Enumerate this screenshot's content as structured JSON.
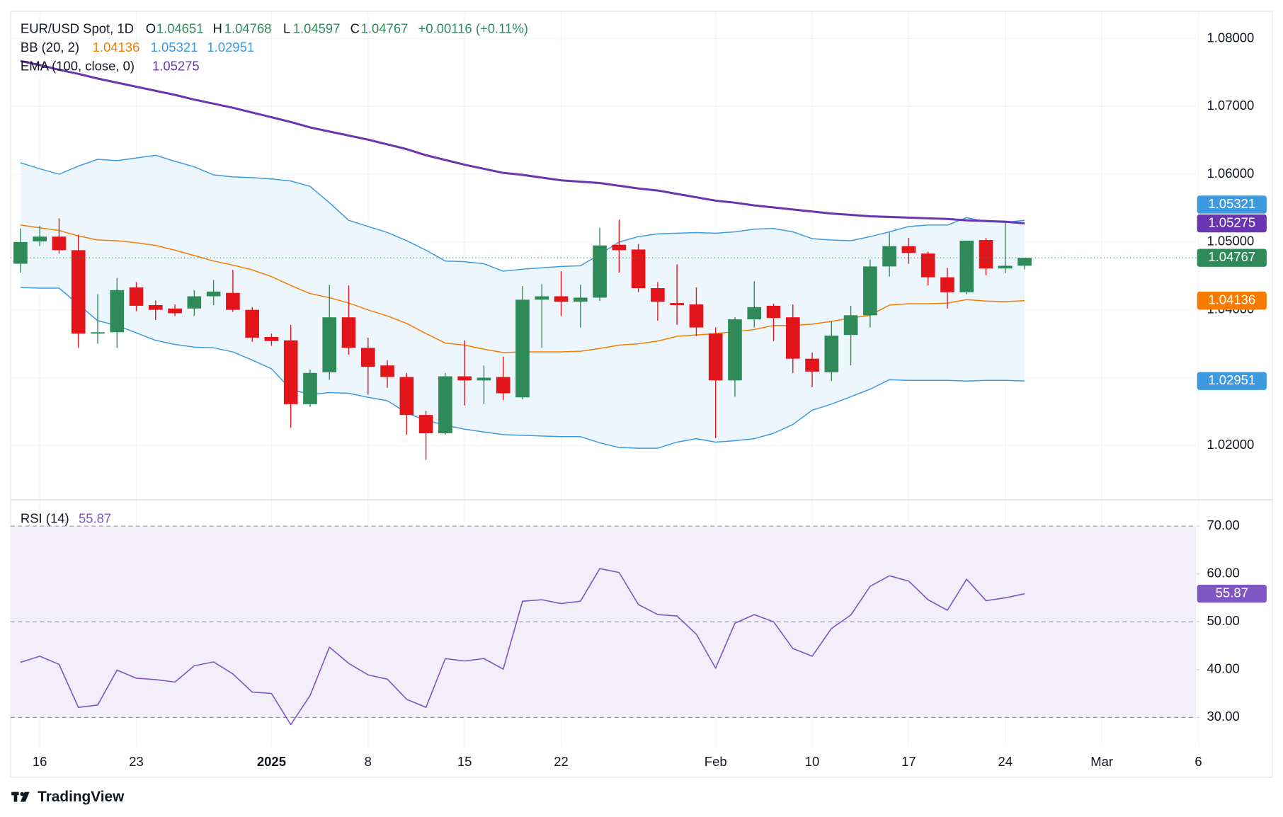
{
  "chart_data": [
    {
      "type": "candlestick",
      "title": "EUR/USD Spot, 1D",
      "ohlc_labels": {
        "open": "O",
        "high": "H",
        "low": "L",
        "close": "C"
      },
      "change": "+0.00116 (+0.11%)",
      "categories": [
        null,
        "16",
        null,
        null,
        null,
        null,
        "23",
        null,
        null,
        null,
        null,
        null,
        null,
        "2025",
        null,
        null,
        null,
        null,
        "8",
        null,
        null,
        null,
        null,
        "15",
        null,
        null,
        null,
        null,
        "22",
        null,
        null,
        null,
        null,
        null,
        null,
        null,
        "Feb",
        null,
        null,
        null,
        null,
        "10",
        null,
        null,
        null,
        null,
        "17",
        null,
        null,
        null,
        null,
        "24",
        null,
        null,
        null,
        null,
        "Mar",
        null,
        null,
        null,
        null,
        "6"
      ],
      "open": [
        1.0468,
        1.0501,
        1.0508,
        1.0488,
        1.0365,
        1.0367,
        1.0433,
        1.0407,
        1.0402,
        1.0402,
        1.042,
        1.0425,
        1.04,
        1.036,
        1.0355,
        1.0261,
        1.0308,
        1.0389,
        1.0344,
        1.0318,
        1.0301,
        1.0245,
        1.0218,
        1.0302,
        1.0296,
        1.0301,
        1.0271,
        1.0415,
        1.042,
        1.0412,
        1.0418,
        1.0496,
        1.0489,
        1.0432,
        1.041,
        1.0408,
        1.0365,
        1.0296,
        1.0386,
        1.0406,
        1.0389,
        1.0328,
        1.0308,
        1.0363,
        1.0392,
        1.0464,
        1.0494,
        1.0483,
        1.0448,
        1.0426,
        1.0503,
        1.0461,
        1.04651,
        null,
        null,
        null,
        null,
        null,
        null,
        null,
        null,
        null
      ],
      "high": [
        1.052,
        1.0524,
        1.0535,
        1.0511,
        1.0423,
        1.0447,
        1.0441,
        1.0414,
        1.0408,
        1.0429,
        1.0444,
        1.0459,
        1.0404,
        1.0365,
        1.0378,
        1.0312,
        1.0437,
        1.0436,
        1.0359,
        1.0326,
        1.0307,
        1.0251,
        1.0307,
        1.0355,
        1.0318,
        1.0331,
        1.0435,
        1.0438,
        1.0457,
        1.0437,
        1.0521,
        1.0533,
        1.0497,
        1.0441,
        1.0467,
        1.0433,
        1.0374,
        1.0389,
        1.0442,
        1.0409,
        1.0408,
        1.0337,
        1.0383,
        1.0406,
        1.0474,
        1.0514,
        1.0506,
        1.0486,
        1.0462,
        1.0502,
        1.0506,
        1.0529,
        1.04768,
        null,
        null,
        null,
        null,
        null,
        null,
        null,
        null,
        null
      ],
      "low": [
        1.0455,
        1.0494,
        1.0483,
        1.0344,
        1.035,
        1.0344,
        1.0398,
        1.0385,
        1.0391,
        1.0391,
        1.0407,
        1.0397,
        1.0353,
        1.0347,
        1.0226,
        1.0257,
        1.0297,
        1.0334,
        1.0275,
        1.0285,
        1.0216,
        1.0179,
        1.0216,
        1.0259,
        1.0261,
        1.0267,
        1.0268,
        1.0344,
        1.0391,
        1.0374,
        1.0413,
        1.0455,
        1.0426,
        1.0384,
        1.0378,
        1.0361,
        1.0211,
        1.0272,
        1.0374,
        1.0354,
        1.0307,
        1.0286,
        1.0295,
        1.0318,
        1.0374,
        1.0449,
        1.0468,
        1.0436,
        1.0402,
        1.0423,
        1.0451,
        1.0454,
        1.04597,
        null,
        null,
        null,
        null,
        null,
        null,
        null,
        null,
        null
      ],
      "close": [
        1.05,
        1.0508,
        1.0488,
        1.0365,
        1.0367,
        1.0429,
        1.0406,
        1.04,
        1.0395,
        1.042,
        1.0427,
        1.04,
        1.0359,
        1.0354,
        1.0261,
        1.0307,
        1.0389,
        1.0344,
        1.0316,
        1.0301,
        1.0245,
        1.0218,
        1.0302,
        1.0296,
        1.03,
        1.0277,
        1.0415,
        1.042,
        1.0412,
        1.0418,
        1.0495,
        1.0488,
        1.0432,
        1.0412,
        1.0407,
        1.0374,
        1.0296,
        1.0386,
        1.0404,
        1.0388,
        1.0328,
        1.0309,
        1.0362,
        1.0392,
        1.0464,
        1.0494,
        1.0484,
        1.0448,
        1.0426,
        1.0502,
        1.0461,
        1.0465,
        1.04767,
        null,
        null,
        null,
        null,
        null,
        null,
        null,
        null,
        null
      ],
      "up_color": "#2e8b57",
      "down_color": "#e3151a",
      "overlays": [
        {
          "name": "BB (20, 2)",
          "fill": "#eef6fd",
          "lines": [
            {
              "color": "#f57c00",
              "values": [
                1.0525,
                1.0521,
                1.0517,
                1.0509,
                1.0503,
                1.0502,
                1.0499,
                1.0495,
                1.0488,
                1.048,
                1.0472,
                1.0466,
                1.0459,
                1.0449,
                1.0436,
                1.0424,
                1.0418,
                1.041,
                1.04,
                1.0391,
                1.038,
                1.0365,
                1.0351,
                1.0348,
                1.0342,
                1.0337,
                1.0338,
                1.0338,
                1.0338,
                1.0339,
                1.0343,
                1.0348,
                1.035,
                1.0354,
                1.0361,
                1.0363,
                1.0365,
                1.0368,
                1.0371,
                1.0377,
                1.0377,
                1.0379,
                1.0383,
                1.0388,
                1.0392,
                1.0407,
                1.0409,
                1.0409,
                1.041,
                1.0415,
                1.0413,
                1.0412,
                1.04136,
                null,
                null,
                null,
                null,
                null,
                null,
                null,
                null,
                null
              ]
            },
            {
              "color": "#3d9ae0",
              "values": [
                1.0617,
                1.0608,
                1.06,
                1.0612,
                1.0622,
                1.062,
                1.0624,
                1.0628,
                1.0619,
                1.0611,
                1.0599,
                1.0596,
                1.0595,
                1.0593,
                1.059,
                1.0582,
                1.0558,
                1.0532,
                1.0523,
                1.0514,
                1.0502,
                1.0488,
                1.0472,
                1.0471,
                1.0468,
                1.0457,
                1.046,
                1.0462,
                1.0464,
                1.0465,
                1.0482,
                1.05,
                1.0508,
                1.0512,
                1.0513,
                1.0514,
                1.0513,
                1.0515,
                1.0519,
                1.052,
                1.0515,
                1.0505,
                1.0503,
                1.0502,
                1.0508,
                1.0515,
                1.0523,
                1.0525,
                1.0525,
                1.0536,
                1.053,
                1.0529,
                1.05321,
                null,
                null,
                null,
                null,
                null,
                null,
                null,
                null,
                null
              ]
            },
            {
              "color": "#3d9ae0",
              "values": [
                1.0433,
                1.0432,
                1.0432,
                1.0408,
                1.0384,
                1.0377,
                1.0366,
                1.0355,
                1.0349,
                1.0345,
                1.0344,
                1.0338,
                1.0326,
                1.0313,
                1.0283,
                1.0275,
                1.0278,
                1.0277,
                1.0271,
                1.0266,
                1.0248,
                1.0237,
                1.023,
                1.0224,
                1.022,
                1.0216,
                1.0215,
                1.0214,
                1.0213,
                1.0213,
                1.0204,
                1.0197,
                1.0196,
                1.0196,
                1.0205,
                1.021,
                1.0205,
                1.0207,
                1.021,
                1.0218,
                1.0231,
                1.0252,
                1.0261,
                1.0272,
                1.0283,
                1.0297,
                1.0296,
                1.0296,
                1.0296,
                1.0295,
                1.0296,
                1.0296,
                1.02951,
                null,
                null,
                null,
                null,
                null,
                null,
                null,
                null,
                null
              ]
            }
          ]
        },
        {
          "name": "EMA (100, close, 0)",
          "color": "#6a35b0",
          "values": [
            1.0767,
            1.0761,
            1.0754,
            1.0748,
            1.0741,
            1.0735,
            1.0729,
            1.0723,
            1.0717,
            1.071,
            1.0704,
            1.0698,
            1.0691,
            1.0684,
            1.0677,
            1.0669,
            1.0663,
            1.0657,
            1.0651,
            1.0644,
            1.0637,
            1.0628,
            1.0621,
            1.0614,
            1.0608,
            1.0602,
            1.0599,
            1.0595,
            1.0591,
            1.0589,
            1.0587,
            1.0583,
            1.0579,
            1.0576,
            1.0571,
            1.0566,
            1.0561,
            1.0558,
            1.0554,
            1.0551,
            1.0548,
            1.0545,
            1.0542,
            1.054,
            1.0538,
            1.0537,
            1.0536,
            1.0535,
            1.0534,
            1.0532,
            1.0531,
            1.053,
            1.05275,
            null,
            null,
            null,
            null,
            null,
            null,
            null,
            null,
            null
          ]
        }
      ],
      "ylim": [
        1.0121,
        1.084
      ],
      "yticks": [
        {
          "value": 1.02,
          "label": "1.02000"
        },
        {
          "value": 1.03,
          "label": "1.03000"
        },
        {
          "value": 1.04,
          "label": "1.04000"
        },
        {
          "value": 1.05,
          "label": "1.05000"
        },
        {
          "value": 1.06,
          "label": "1.06000"
        },
        {
          "value": 1.07,
          "label": "1.07000"
        },
        {
          "value": 1.08,
          "label": "1.08000"
        }
      ],
      "grid": true,
      "last_price_line": true
    },
    {
      "type": "line",
      "series": [
        {
          "name": "RSI (14)",
          "color": "#7e57c2",
          "values": [
            41.5,
            42.8,
            41.1,
            32.1,
            32.6,
            39.9,
            38.2,
            37.9,
            37.4,
            40.8,
            41.6,
            39.1,
            35.3,
            35.0,
            28.5,
            34.6,
            44.7,
            41.3,
            38.9,
            38.0,
            33.8,
            32.1,
            42.3,
            41.8,
            42.3,
            40.1,
            54.3,
            54.6,
            53.8,
            54.3,
            61.1,
            60.3,
            53.6,
            51.5,
            51.2,
            47.4,
            40.3,
            49.7,
            51.5,
            50.0,
            44.4,
            42.8,
            48.6,
            51.4,
            57.4,
            59.6,
            58.5,
            54.6,
            52.4,
            58.9,
            54.4,
            55.0,
            55.87,
            null,
            null,
            null,
            null,
            null,
            null,
            null,
            null,
            null
          ]
        }
      ],
      "ylim": [
        24,
        75.3
      ],
      "yticks": [
        {
          "value": 30,
          "label": "30.00"
        },
        {
          "value": 40,
          "label": "40.00"
        },
        {
          "value": 50,
          "label": "50.00"
        },
        {
          "value": 60,
          "label": "60.00"
        },
        {
          "value": 70,
          "label": "70.00"
        }
      ],
      "levels": [
        30,
        50,
        70
      ],
      "band": "#f2eefa"
    }
  ],
  "footer": {
    "brand": "TradingView"
  }
}
